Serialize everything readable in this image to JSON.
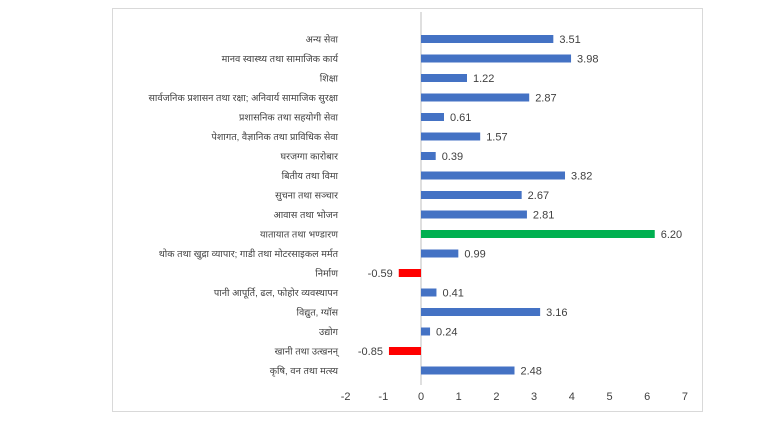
{
  "chart_data": {
    "type": "bar",
    "orientation": "horizontal",
    "title": "",
    "xlabel": "",
    "ylabel": "",
    "xlim": [
      -2,
      7
    ],
    "xticks": [
      "-2",
      "-1",
      "0",
      "1",
      "2",
      "3",
      "4",
      "5",
      "6",
      "7"
    ],
    "grid": false,
    "categories": [
      "अन्य सेवा",
      "मानव स्वास्थ्य तथा सामाजिक कार्य",
      "शिक्षा",
      "सार्वजनिक प्रशासन तथा रक्षा; अनिवार्य सामाजिक सुरक्षा",
      "प्रशासनिक तथा सहयोगी सेवा",
      "पेशागत, वैज्ञानिक तथा प्राविधिक सेवा",
      "घरजग्गा कारोबार",
      "बितीय तथा विमा",
      "सुचना तथा सञ्चार",
      "आवास तथा भोजन",
      "यातायात तथा भण्डारण",
      "थोक तथा खुद्रा व्यापार; गाडी तथा मोटरसाइकल मर्मत",
      "निर्माण",
      "पानी आपूर्ति, ढल, फोहोर व्यवस्थापन",
      "विद्युत, ग्यॉस",
      "उद्योग",
      "खानी तथा उत्खनन्",
      "कृषि, वन तथा मत्स्य"
    ],
    "values": [
      3.51,
      3.98,
      1.22,
      2.87,
      0.61,
      1.57,
      0.39,
      3.82,
      2.67,
      2.81,
      6.2,
      0.99,
      -0.59,
      0.41,
      3.16,
      0.24,
      -0.85,
      2.48
    ],
    "labels": [
      "3.51",
      "3.98",
      "1.22",
      "2.87",
      "0.61",
      "1.57",
      "0.39",
      "3.82",
      "2.67",
      "2.81",
      "6.20",
      "0.99",
      "-0.59",
      "0.41",
      "3.16",
      "0.24",
      "-0.85",
      "2.48"
    ],
    "colors": {
      "positive": "#4472c4",
      "negative": "#ff0000",
      "highlight": "#00b050",
      "axis": "#bfbfbf",
      "text": "#404040"
    },
    "highlight_index": 10
  }
}
